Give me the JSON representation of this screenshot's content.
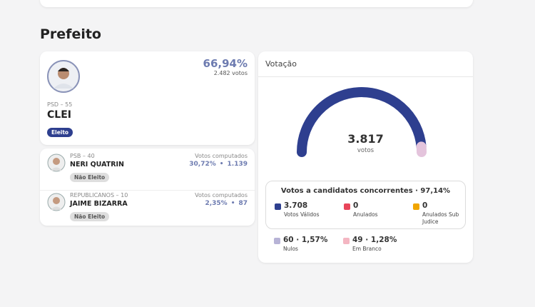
{
  "section_title": "Prefeito",
  "winner": {
    "party": "PSD – 55",
    "name": "CLEI",
    "percent": "66,94%",
    "votes": "2.482 votos",
    "status": "Eleito"
  },
  "candidates": [
    {
      "party": "PSB – 40",
      "name": "NERI QUATRIN",
      "votes_label": "Votos computados",
      "percent": "30,72%",
      "separator": "•",
      "votes": "1.139",
      "status": "Não Eleito"
    },
    {
      "party": "REPUBLICANOS – 10",
      "name": "JAIME BIZARRA",
      "votes_label": "Votos computados",
      "percent": "2,35%",
      "separator": "•",
      "votes": "87",
      "status": "Não Eleito"
    }
  ],
  "votacao": {
    "title": "Votação",
    "total": "3.817",
    "total_label": "votos",
    "summary": "Votos a candidatos concorrentes · 97,14%",
    "items": [
      {
        "value": "3.708",
        "label": "Votos Válidos",
        "color": "#2e3f8f"
      },
      {
        "value": "0",
        "label": "Anulados",
        "color": "#e8455a"
      },
      {
        "value": "0",
        "label": "Anulados Sub Judice",
        "color": "#f0a500"
      }
    ],
    "extra_items": [
      {
        "value": "60 · 1,57%",
        "label": "Nulos",
        "color": "#b7b3d6"
      },
      {
        "value": "49 · 1,28%",
        "label": "Em Branco",
        "color": "#f4b6c2"
      }
    ]
  }
}
